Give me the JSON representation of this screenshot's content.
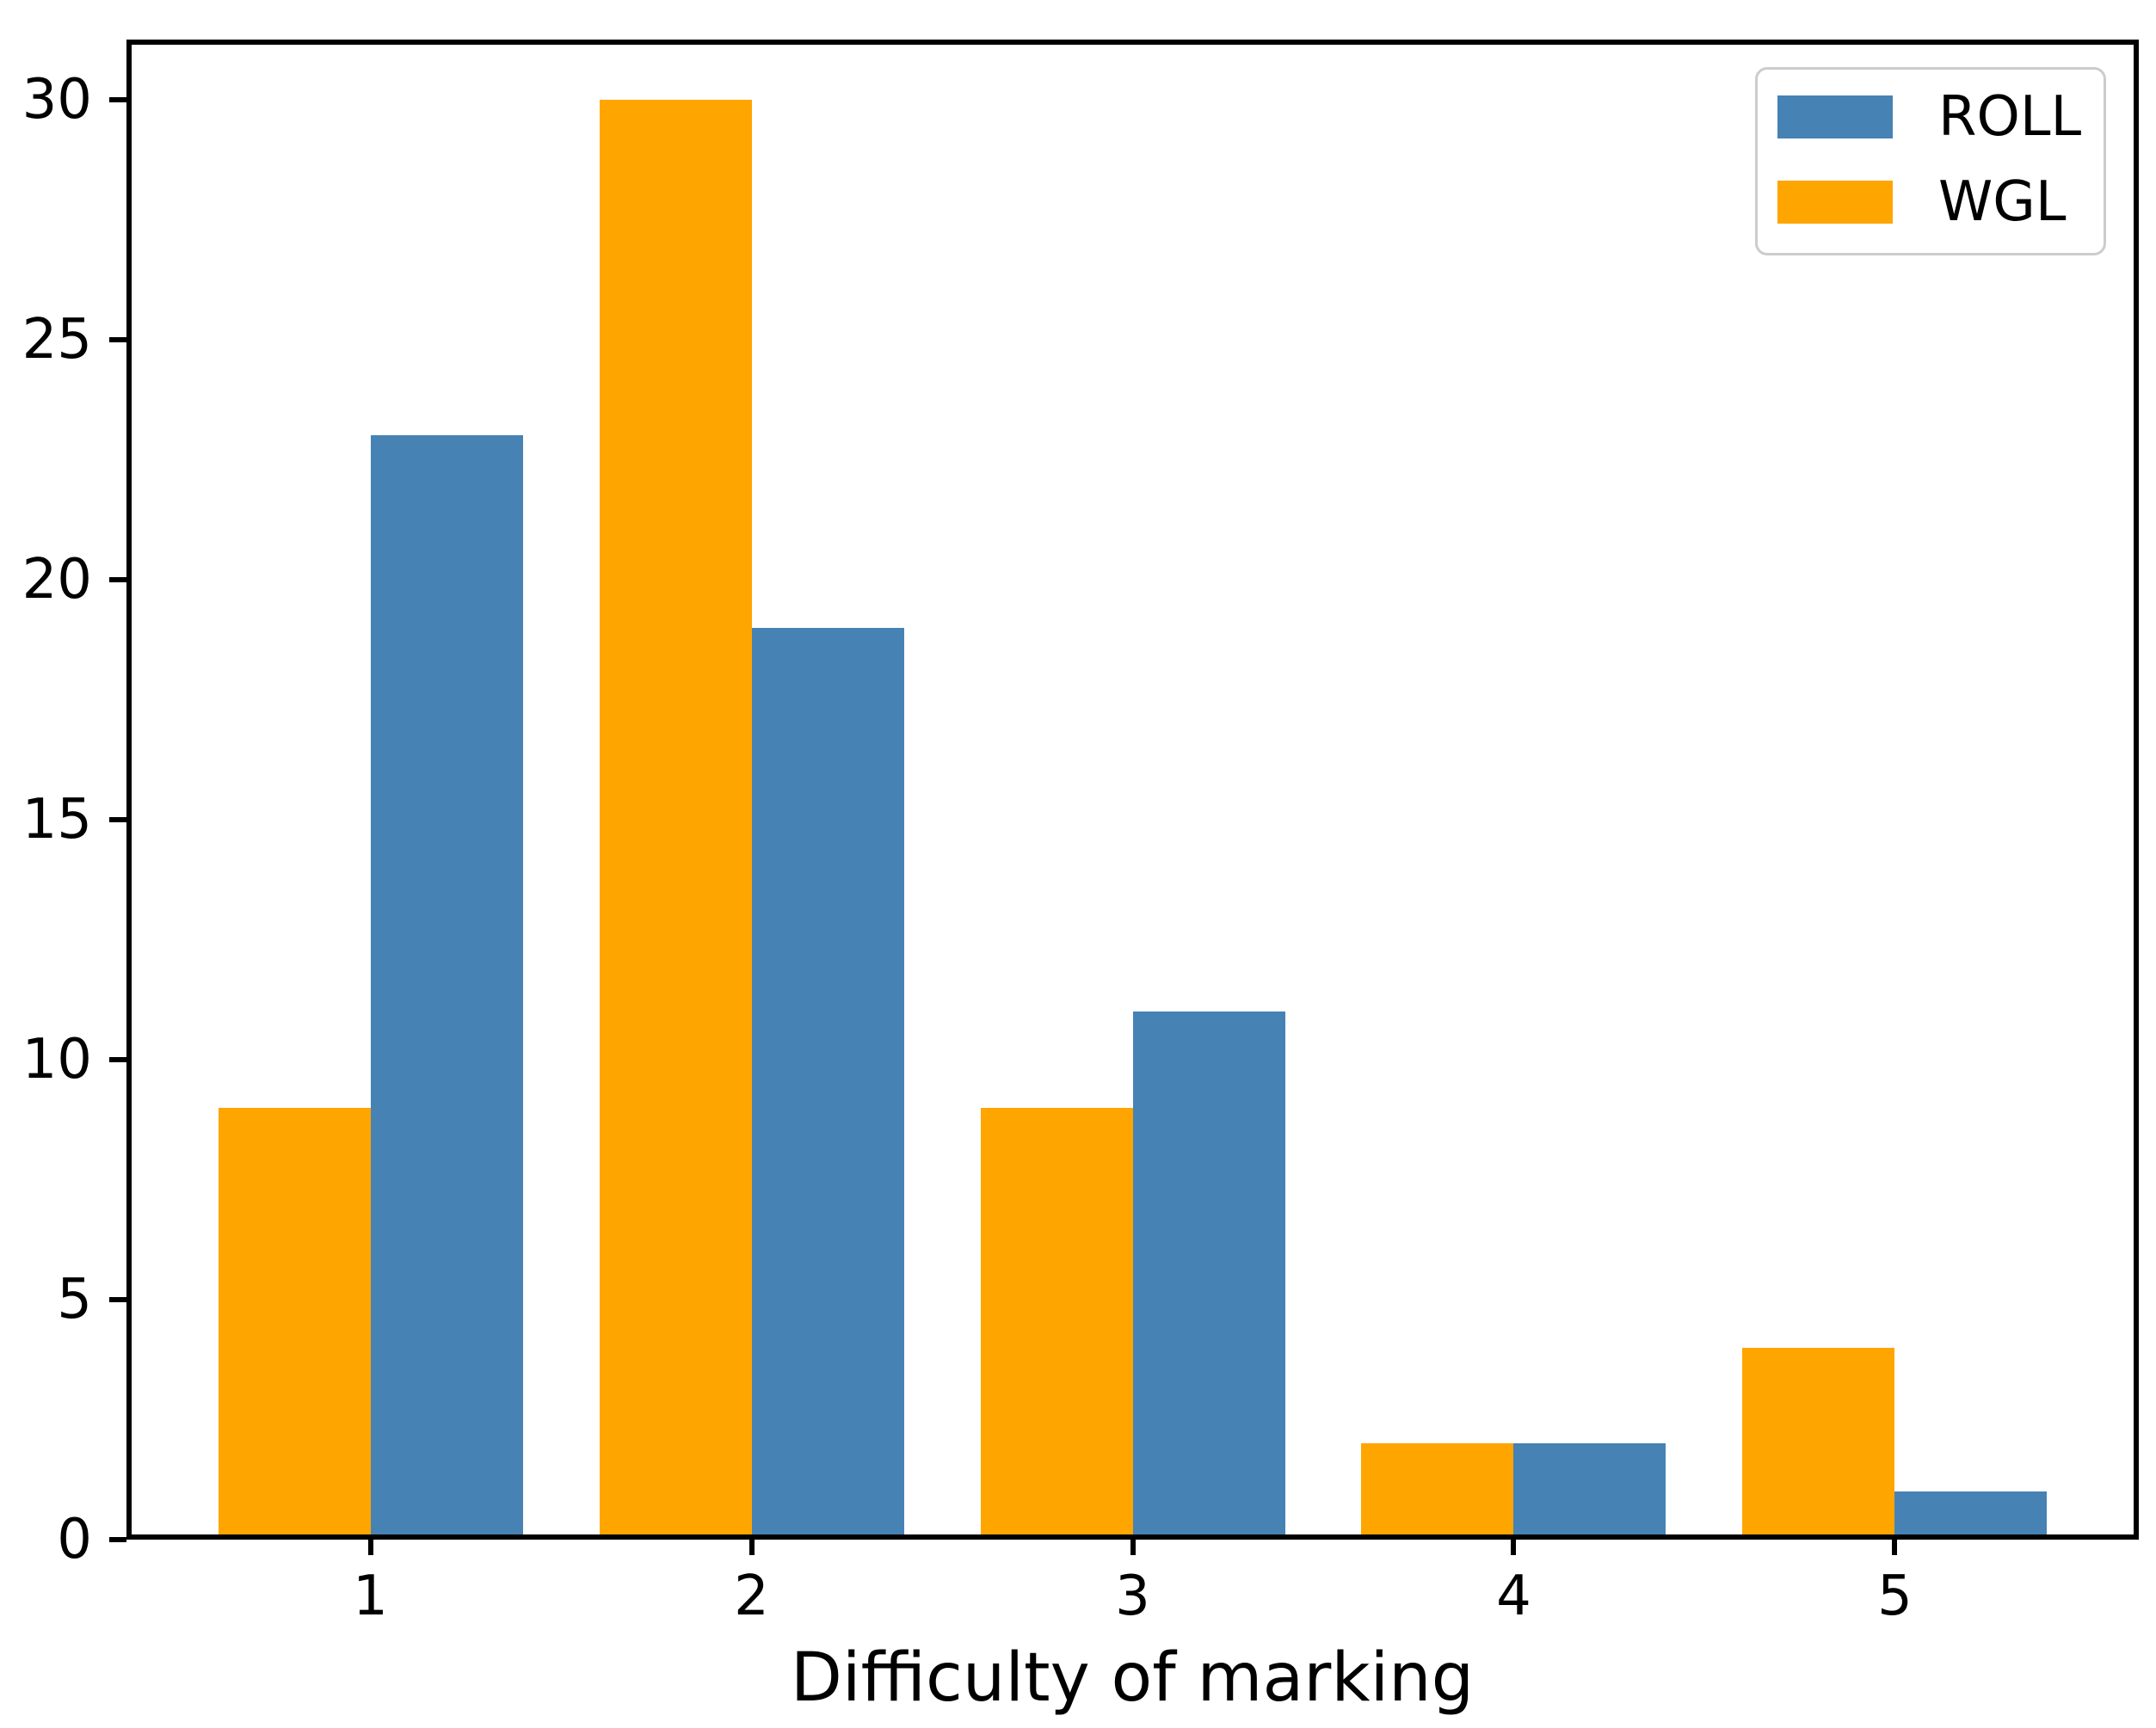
{
  "chart_data": {
    "type": "bar",
    "title": "",
    "xlabel": "Difficulty of marking",
    "ylabel": "",
    "categories": [
      "1",
      "2",
      "3",
      "4",
      "5"
    ],
    "series": [
      {
        "name": "WGL",
        "color": "#FFA500",
        "side": "left",
        "values": [
          9,
          30,
          9,
          2,
          4
        ]
      },
      {
        "name": "ROLL",
        "color": "#4682B4",
        "side": "right",
        "values": [
          23,
          19,
          11,
          2,
          1
        ]
      }
    ],
    "legend": {
      "position": "upper right",
      "entries": [
        {
          "label": "ROLL",
          "color": "#4682B4"
        },
        {
          "label": "WGL",
          "color": "#FFA500"
        }
      ]
    },
    "yticks": [
      "0",
      "5",
      "10",
      "15",
      "20",
      "25",
      "30"
    ],
    "ytick_values": [
      0,
      5,
      10,
      15,
      20,
      25,
      30
    ],
    "ylim": [
      0,
      31.25
    ],
    "xlim": [
      0.36,
      5.64
    ],
    "bar_half_width_units": 0.4,
    "grid": false,
    "axis_color": "#000000",
    "background_color": "#ffffff"
  }
}
